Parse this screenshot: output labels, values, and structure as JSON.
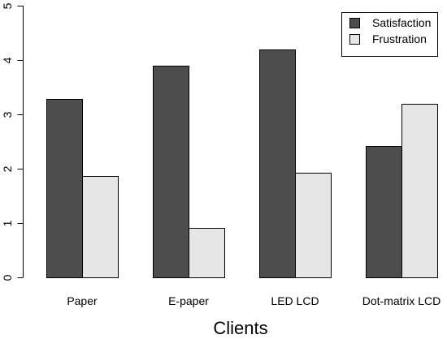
{
  "chart_data": {
    "type": "bar",
    "categories": [
      "Paper",
      "E-paper",
      "LED LCD",
      "Dot-matrix LCD"
    ],
    "series": [
      {
        "name": "Satisfaction",
        "values": [
          3.29,
          3.89,
          4.2,
          2.42
        ],
        "color": "#4d4d4d"
      },
      {
        "name": "Frustration",
        "values": [
          1.87,
          0.91,
          1.93,
          3.2
        ],
        "color": "#e6e6e6"
      }
    ],
    "title": "",
    "xlabel": "Clients",
    "ylabel": "",
    "ylim": [
      0,
      5
    ],
    "yticks": [
      "0",
      "1",
      "2",
      "3",
      "4",
      "5"
    ],
    "legend": {
      "position": "top-right"
    },
    "grid": false
  }
}
